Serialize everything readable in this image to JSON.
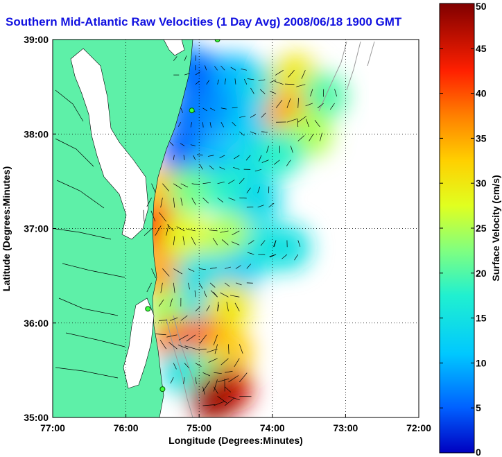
{
  "chart_data": {
    "type": "heatmap",
    "title": "Southern Mid-Atlantic Raw Velocities (1 Day Avg) 2008/06/18 1900 GMT",
    "xlabel": "Longitude (Degrees:Minutes)",
    "ylabel": "Latitude (Degrees:Minutes)",
    "colorbar_label": "Surface Velocity (cm/s)",
    "xlim": [
      -77,
      -72
    ],
    "ylim": [
      35,
      39
    ],
    "x_ticks": [
      {
        "value": -77,
        "label": "77:00"
      },
      {
        "value": -76,
        "label": "76:00"
      },
      {
        "value": -75,
        "label": "75:00"
      },
      {
        "value": -74,
        "label": "74:00"
      },
      {
        "value": -73,
        "label": "73:00"
      },
      {
        "value": -72,
        "label": "72:00"
      }
    ],
    "y_ticks": [
      {
        "value": 35,
        "label": "35:00"
      },
      {
        "value": 36,
        "label": "36:00"
      },
      {
        "value": 37,
        "label": "37:00"
      },
      {
        "value": 38,
        "label": "38:00"
      },
      {
        "value": 39,
        "label": "39:00"
      }
    ],
    "colorbar": {
      "range": [
        0,
        50
      ],
      "ticks": [
        0,
        5,
        10,
        15,
        20,
        25,
        30,
        35,
        40,
        45,
        50
      ]
    },
    "grid": true,
    "land_color": "#5ef0a8",
    "speed_field": [
      {
        "lon": -75.2,
        "lat": 38.7,
        "speed": 8
      },
      {
        "lon": -74.9,
        "lat": 38.6,
        "speed": 5
      },
      {
        "lon": -74.5,
        "lat": 38.6,
        "speed": 10
      },
      {
        "lon": -74.1,
        "lat": 38.5,
        "speed": 15
      },
      {
        "lon": -73.7,
        "lat": 38.6,
        "speed": 30
      },
      {
        "lon": -73.3,
        "lat": 38.4,
        "speed": 20
      },
      {
        "lon": -75.1,
        "lat": 38.2,
        "speed": 6
      },
      {
        "lon": -74.7,
        "lat": 38.2,
        "speed": 8
      },
      {
        "lon": -74.3,
        "lat": 38.1,
        "speed": 12
      },
      {
        "lon": -73.8,
        "lat": 38.2,
        "speed": 35
      },
      {
        "lon": -73.5,
        "lat": 38.0,
        "speed": 25
      },
      {
        "lon": -75.2,
        "lat": 37.8,
        "speed": 5
      },
      {
        "lon": -74.8,
        "lat": 37.7,
        "speed": 10
      },
      {
        "lon": -74.3,
        "lat": 37.7,
        "speed": 14
      },
      {
        "lon": -73.9,
        "lat": 37.8,
        "speed": 18
      },
      {
        "lon": -75.5,
        "lat": 37.4,
        "speed": 33
      },
      {
        "lon": -75.1,
        "lat": 37.4,
        "speed": 22
      },
      {
        "lon": -74.6,
        "lat": 37.4,
        "speed": 18
      },
      {
        "lon": -74.2,
        "lat": 37.3,
        "speed": 14
      },
      {
        "lon": -75.6,
        "lat": 37.0,
        "speed": 42
      },
      {
        "lon": -75.2,
        "lat": 36.9,
        "speed": 28
      },
      {
        "lon": -74.6,
        "lat": 36.9,
        "speed": 25
      },
      {
        "lon": -74.1,
        "lat": 36.8,
        "speed": 16
      },
      {
        "lon": -73.8,
        "lat": 36.8,
        "speed": 15
      },
      {
        "lon": -75.5,
        "lat": 36.5,
        "speed": 35
      },
      {
        "lon": -75.0,
        "lat": 36.5,
        "speed": 15
      },
      {
        "lon": -74.5,
        "lat": 36.5,
        "speed": 12
      },
      {
        "lon": -75.4,
        "lat": 36.1,
        "speed": 24
      },
      {
        "lon": -74.9,
        "lat": 36.2,
        "speed": 14
      },
      {
        "lon": -74.6,
        "lat": 36.2,
        "speed": 30
      },
      {
        "lon": -75.3,
        "lat": 35.8,
        "speed": 38
      },
      {
        "lon": -74.9,
        "lat": 35.8,
        "speed": 40
      },
      {
        "lon": -74.6,
        "lat": 35.7,
        "speed": 33
      },
      {
        "lon": -75.2,
        "lat": 35.5,
        "speed": 15
      },
      {
        "lon": -74.8,
        "lat": 35.4,
        "speed": 22
      },
      {
        "lon": -74.6,
        "lat": 35.3,
        "speed": 45
      },
      {
        "lon": -74.8,
        "lat": 35.2,
        "speed": 48
      }
    ]
  }
}
